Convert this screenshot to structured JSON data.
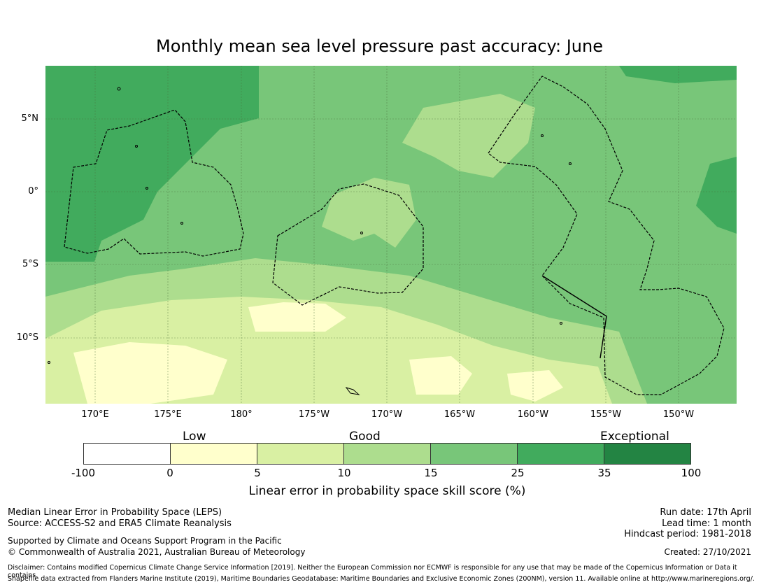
{
  "title": "Monthly mean sea level pressure past accuracy: June",
  "map": {
    "lat_labels": [
      "5°N",
      "0°",
      "5°S",
      "10°S"
    ],
    "lon_labels": [
      "170°E",
      "175°E",
      "180°",
      "175°W",
      "170°W",
      "165°W",
      "160°W",
      "155°W",
      "150°W"
    ]
  },
  "colorbar": {
    "categories": [
      "Low",
      "Good",
      "Exceptional"
    ],
    "ticks": [
      "-100",
      "0",
      "5",
      "10",
      "15",
      "25",
      "35",
      "100"
    ],
    "colors": [
      "#ffffff",
      "#ffffcc",
      "#d9f0a3",
      "#addd8e",
      "#78c679",
      "#41ab5d",
      "#238443"
    ],
    "label": "Linear error in probability space skill score (%)"
  },
  "footer": {
    "left_line1": "Median Linear Error in Probability Space (LEPS)",
    "left_line2": "Source: ACCESS-S2 and ERA5 Climate Reanalysis",
    "left_line3": "Supported by Climate and Oceans Support Program in the Pacific",
    "left_line4": "© Commonwealth of Australia 2021, Australian Bureau of Meteorology",
    "run_date": "Run date: 17th April",
    "lead_time": "Lead time: 1 month",
    "hindcast": "Hindcast period: 1981-2018",
    "created": "Created: 27/10/2021",
    "disclaimer": "Disclaimer: Contains modified Copernicus Climate Change Service Information [2019]. Neither the European Commission nor ECMWF is responsible for any use that may be made of the Copernicus Information or Data it contains.",
    "shapefile": "Shapefile data extracted from Flanders Marine Institute (2019), Maritime Boundaries Geodatabase: Maritime Boundaries and Exclusive Economic Zones (200NM), version 11. Available online at http://www.marineregions.org/."
  }
}
